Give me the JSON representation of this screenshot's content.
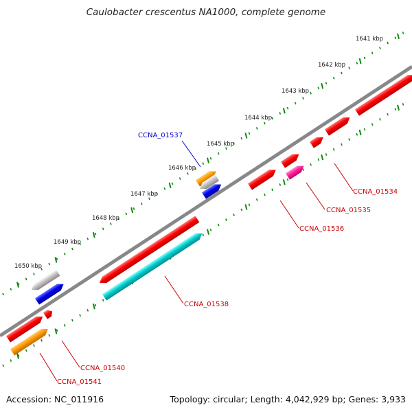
{
  "title": "Caulobacter crescentus NA1000, complete genome",
  "footer": {
    "accession": "Accession: NC_011916",
    "summary": "Topology: circular; Length: 4,042,929 bp; Genes: 3,933"
  },
  "ticks": [
    {
      "label": "1641 kbp"
    },
    {
      "label": "1642 kbp"
    },
    {
      "label": "1643 kbp"
    },
    {
      "label": "1644 kbp"
    },
    {
      "label": "1645 kbp"
    },
    {
      "label": "1646 kbp"
    },
    {
      "label": "1647 kbp"
    },
    {
      "label": "1648 kbp"
    },
    {
      "label": "1649 kbp"
    },
    {
      "label": "1650 kbp"
    }
  ],
  "gene_labels": [
    {
      "id": "CCNA_01534",
      "color": "#cc0000"
    },
    {
      "id": "CCNA_01535",
      "color": "#cc0000"
    },
    {
      "id": "CCNA_01536",
      "color": "#cc0000"
    },
    {
      "id": "CCNA_01537",
      "color": "#0000cc"
    },
    {
      "id": "CCNA_01538",
      "color": "#cc0000"
    },
    {
      "id": "CCNA_01540",
      "color": "#cc0000"
    },
    {
      "id": "CCNA_01541",
      "color": "#cc0000"
    }
  ],
  "colors": {
    "backbone": "#888888",
    "tick": "#118811",
    "red": "#ff0000",
    "cyan": "#00cccc",
    "orange": "#ff9900",
    "magenta": "#ff2299",
    "blue": "#0000ee",
    "gray": "#bbbbbb"
  }
}
